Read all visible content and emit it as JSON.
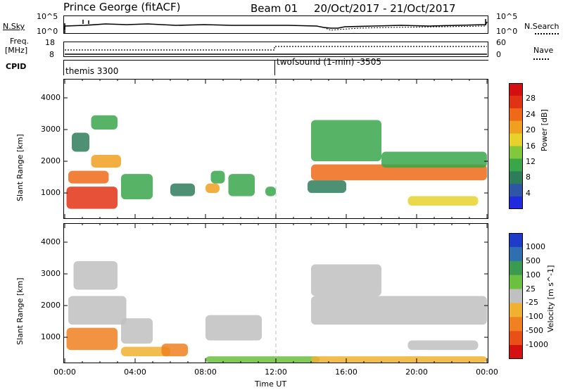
{
  "header": {
    "station": "Prince George (fitACF)",
    "beam": "Beam 01",
    "dates": "20/Oct/2017 - 21/Oct/2017"
  },
  "top_panels": {
    "nsky_label": "N.Sky",
    "nsky_ticks": [
      "10^5",
      "10^0"
    ],
    "nsearch_label": "N.Search",
    "nsearch_ticks": [
      "10^5",
      "10^0"
    ],
    "freq_label_1": "Freq.",
    "freq_label_2": "[MHz]",
    "freq_ticks": [
      "18",
      "8"
    ],
    "nave_label": "Nave",
    "nave_ticks": [
      "60",
      "0"
    ],
    "cpid_label": "CPID",
    "cpid_segments": [
      "themis 3300",
      "twofsound (1-min) -3505"
    ],
    "cpid_change_time": "12:00"
  },
  "x_axis": {
    "label": "Time UT",
    "ticks": [
      "00:00",
      "04:00",
      "08:00",
      "12:00",
      "16:00",
      "20:00",
      "00:00"
    ],
    "range_hours": [
      0,
      24
    ]
  },
  "chart_data": [
    {
      "type": "heatmap",
      "panel": "power",
      "ylabel": "Slant Range [km]",
      "ylim": [
        180,
        4600
      ],
      "yticks": [
        "1000",
        "2000",
        "3000",
        "4000"
      ],
      "ytick_values": [
        1000,
        2000,
        3000,
        4000
      ],
      "colorbar_label": "Power [dB]",
      "colorbar_ticks": [
        "4",
        "8",
        "12",
        "16",
        "20",
        "24",
        "28"
      ],
      "colorbar_values": [
        4,
        8,
        12,
        16,
        20,
        24,
        28
      ],
      "colorbar_range": [
        0,
        32
      ],
      "colors": [
        "#1f2bdc",
        "#2d56a6",
        "#2e7d5a",
        "#3aa64a",
        "#82c83c",
        "#e6d22a",
        "#f0a020",
        "#ee6a18",
        "#e23214",
        "#d40f0f"
      ],
      "regions": [
        {
          "t": [
            0.1,
            3.0
          ],
          "r": [
            500,
            1200
          ],
          "level": 28
        },
        {
          "t": [
            0.2,
            2.5
          ],
          "r": [
            1300,
            1700
          ],
          "level": 26
        },
        {
          "t": [
            1.5,
            3.2
          ],
          "r": [
            1800,
            2200
          ],
          "level": 20
        },
        {
          "t": [
            0.4,
            1.4
          ],
          "r": [
            2300,
            2900
          ],
          "level": 8
        },
        {
          "t": [
            1.5,
            3.0
          ],
          "r": [
            3000,
            3450
          ],
          "level": 10
        },
        {
          "t": [
            3.2,
            5.0
          ],
          "r": [
            800,
            1600
          ],
          "level": 12
        },
        {
          "t": [
            6.0,
            7.4
          ],
          "r": [
            900,
            1300
          ],
          "level": 8
        },
        {
          "t": [
            8.0,
            8.8
          ],
          "r": [
            1000,
            1300
          ],
          "level": 20
        },
        {
          "t": [
            8.3,
            9.1
          ],
          "r": [
            1300,
            1700
          ],
          "level": 12
        },
        {
          "t": [
            9.3,
            10.8
          ],
          "r": [
            900,
            1600
          ],
          "level": 12
        },
        {
          "t": [
            11.4,
            12.0
          ],
          "r": [
            900,
            1200
          ],
          "level": 12
        },
        {
          "t": [
            14.0,
            24.0
          ],
          "r": [
            1400,
            1900
          ],
          "level": 26
        },
        {
          "t": [
            14.0,
            18.0
          ],
          "r": [
            2000,
            3300
          ],
          "level": 12
        },
        {
          "t": [
            18.0,
            24.0
          ],
          "r": [
            1800,
            2300
          ],
          "level": 10
        },
        {
          "t": [
            19.5,
            23.5
          ],
          "r": [
            600,
            900
          ],
          "level": 16
        },
        {
          "t": [
            13.8,
            16.0
          ],
          "r": [
            1000,
            1400
          ],
          "level": 6
        }
      ]
    },
    {
      "type": "heatmap",
      "panel": "velocity",
      "ylabel": "Slant Range [km]",
      "ylim": [
        180,
        4600
      ],
      "yticks": [
        "1000",
        "2000",
        "3000",
        "4000"
      ],
      "ytick_values": [
        1000,
        2000,
        3000,
        4000
      ],
      "colorbar_label": "Velocity [m s^-1]",
      "colorbar_ticks": [
        "1000",
        "500",
        "100",
        "25",
        "-25",
        "-100",
        "-500",
        "-1000"
      ],
      "colors": [
        "#1e3cc8",
        "#2f6fb0",
        "#3a9a50",
        "#6cc040",
        "#c0c0c0",
        "#f0b030",
        "#f08020",
        "#e85018",
        "#d41010"
      ],
      "regions": [
        {
          "t": [
            0.1,
            3.0
          ],
          "r": [
            600,
            1300
          ],
          "color": "#f08020"
        },
        {
          "t": [
            0.2,
            3.5
          ],
          "r": [
            1400,
            2300
          ],
          "color": "#c0c0c0"
        },
        {
          "t": [
            0.5,
            3.0
          ],
          "r": [
            2500,
            3400
          ],
          "color": "#c0c0c0"
        },
        {
          "t": [
            3.2,
            5.0
          ],
          "r": [
            800,
            1600
          ],
          "color": "#c0c0c0"
        },
        {
          "t": [
            3.2,
            6.0
          ],
          "r": [
            400,
            700
          ],
          "color": "#f0b030"
        },
        {
          "t": [
            5.5,
            7.0
          ],
          "r": [
            400,
            800
          ],
          "color": "#f08020"
        },
        {
          "t": [
            8.0,
            11.2
          ],
          "r": [
            900,
            1700
          ],
          "color": "#c0c0c0"
        },
        {
          "t": [
            8.0,
            14.5
          ],
          "r": [
            200,
            400
          ],
          "color": "#6cc040"
        },
        {
          "t": [
            14.0,
            24.0
          ],
          "r": [
            1400,
            2300
          ],
          "color": "#c0c0c0"
        },
        {
          "t": [
            14.0,
            18.0
          ],
          "r": [
            2300,
            3300
          ],
          "color": "#c0c0c0"
        },
        {
          "t": [
            19.5,
            23.5
          ],
          "r": [
            600,
            900
          ],
          "color": "#c0c0c0"
        },
        {
          "t": [
            14.0,
            24.0
          ],
          "r": [
            200,
            400
          ],
          "color": "#f0b030"
        }
      ]
    }
  ]
}
